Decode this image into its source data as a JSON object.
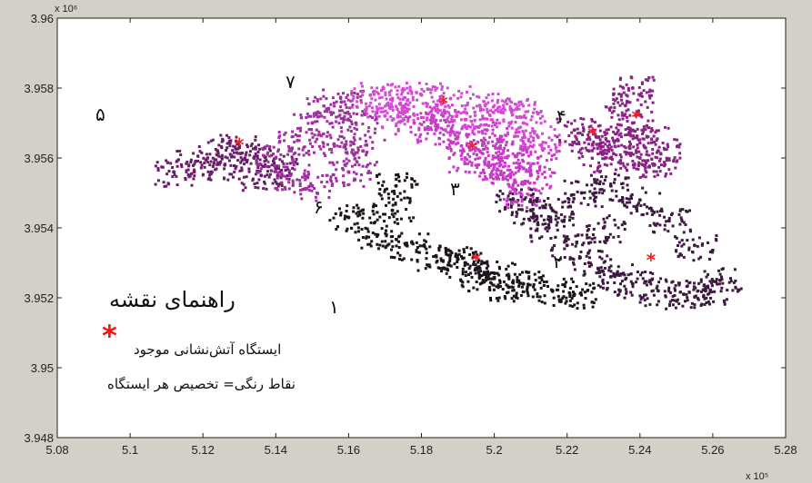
{
  "chart_data": {
    "type": "scatter",
    "x_exponent_label": "x 10⁵",
    "y_exponent_label": "x 10⁶",
    "xlim": [
      5.08,
      5.28
    ],
    "ylim": [
      3.948,
      3.96
    ],
    "x_ticks": [
      "5.08",
      "5.1",
      "5.12",
      "5.14",
      "5.16",
      "5.18",
      "5.2",
      "5.22",
      "5.24",
      "5.26",
      "5.28"
    ],
    "x_tick_values": [
      5.08,
      5.1,
      5.12,
      5.14,
      5.16,
      5.18,
      5.2,
      5.22,
      5.24,
      5.26,
      5.28
    ],
    "y_ticks": [
      "3.96",
      "3.958",
      "3.956",
      "3.954",
      "3.952",
      "3.95",
      "3.948"
    ],
    "y_tick_values": [
      3.96,
      3.958,
      3.956,
      3.954,
      3.952,
      3.95,
      3.948
    ],
    "stations": [
      {
        "x": 5.13,
        "y": 3.9564
      },
      {
        "x": 5.186,
        "y": 3.9576
      },
      {
        "x": 5.194,
        "y": 3.9563
      },
      {
        "x": 5.195,
        "y": 3.9531
      },
      {
        "x": 5.227,
        "y": 3.9567
      },
      {
        "x": 5.239,
        "y": 3.9572
      },
      {
        "x": 5.243,
        "y": 3.9531
      }
    ],
    "regions": [
      {
        "label": "۱",
        "color": "#1e141c",
        "points": [
          [
            5.16,
            3.9543
          ],
          [
            5.168,
            3.9538
          ],
          [
            5.176,
            3.9535
          ],
          [
            5.184,
            3.9532
          ],
          [
            5.192,
            3.953
          ],
          [
            5.2,
            3.9527
          ],
          [
            5.208,
            3.9524
          ],
          [
            5.216,
            3.9522
          ],
          [
            5.222,
            3.9521
          ],
          [
            5.172,
            3.9545
          ],
          [
            5.173,
            3.9552
          ],
          [
            5.19,
            3.9531
          ],
          [
            5.196,
            3.9526
          ],
          [
            5.204,
            3.9523
          ]
        ]
      },
      {
        "label": "۲",
        "color": "#3d1a3f",
        "points": [
          [
            5.205,
            3.9548
          ],
          [
            5.21,
            3.9545
          ],
          [
            5.215,
            3.954
          ],
          [
            5.22,
            3.9535
          ],
          [
            5.226,
            3.953
          ],
          [
            5.232,
            3.9526
          ],
          [
            5.238,
            3.9524
          ],
          [
            5.245,
            3.9522
          ],
          [
            5.252,
            3.9521
          ],
          [
            5.258,
            3.9522
          ],
          [
            5.262,
            3.9525
          ],
          [
            5.255,
            3.9535
          ],
          [
            5.248,
            3.9542
          ],
          [
            5.24,
            3.9548
          ],
          [
            5.232,
            3.9552
          ],
          [
            5.224,
            3.955
          ],
          [
            5.216,
            3.9545
          ],
          [
            5.23,
            3.954
          ]
        ]
      },
      {
        "label": "۳",
        "color": "#c83ac8",
        "points": [
          [
            5.178,
            3.957
          ],
          [
            5.184,
            3.9568
          ],
          [
            5.19,
            3.9566
          ],
          [
            5.196,
            3.9562
          ],
          [
            5.2,
            3.9558
          ],
          [
            5.204,
            3.9555
          ],
          [
            5.207,
            3.955
          ],
          [
            5.21,
            3.9555
          ],
          [
            5.212,
            3.956
          ],
          [
            5.205,
            3.9564
          ],
          [
            5.198,
            3.9568
          ],
          [
            5.186,
            3.9572
          ],
          [
            5.192,
            3.956
          ],
          [
            5.202,
            3.956
          ]
        ]
      },
      {
        "label": "۴",
        "color": "#8a2286",
        "points": [
          [
            5.222,
            3.9568
          ],
          [
            5.228,
            3.9566
          ],
          [
            5.234,
            3.9565
          ],
          [
            5.238,
            3.957
          ],
          [
            5.242,
            3.9566
          ],
          [
            5.245,
            3.9562
          ],
          [
            5.24,
            3.956
          ],
          [
            5.232,
            3.956
          ],
          [
            5.226,
            3.9562
          ],
          [
            5.238,
            3.958
          ],
          [
            5.236,
            3.9575
          ],
          [
            5.244,
            3.9558
          ]
        ]
      },
      {
        "label": "۵",
        "color": "#6a1e6a",
        "points": [
          [
            5.112,
            3.9556
          ],
          [
            5.118,
            3.9559
          ],
          [
            5.124,
            3.9562
          ],
          [
            5.13,
            3.9563
          ],
          [
            5.126,
            3.9558
          ],
          [
            5.134,
            3.956
          ],
          [
            5.136,
            3.9555
          ],
          [
            5.14,
            3.9557
          ]
        ]
      },
      {
        "label": "۶",
        "color": "#a030a0",
        "points": [
          [
            5.14,
            3.956
          ],
          [
            5.146,
            3.9565
          ],
          [
            5.15,
            3.957
          ],
          [
            5.154,
            3.9574
          ],
          [
            5.158,
            3.9576
          ],
          [
            5.162,
            3.957
          ],
          [
            5.164,
            3.9562
          ],
          [
            5.16,
            3.9556
          ],
          [
            5.15,
            3.9552
          ],
          [
            5.144,
            3.9555
          ],
          [
            5.156,
            3.9564
          ]
        ]
      },
      {
        "label": "۷",
        "color": "#d54ad5",
        "points": [
          [
            5.166,
            3.9578
          ],
          [
            5.172,
            3.9577
          ],
          [
            5.18,
            3.9578
          ],
          [
            5.188,
            3.9577
          ],
          [
            5.196,
            3.9575
          ],
          [
            5.202,
            3.9573
          ],
          [
            5.208,
            3.957
          ],
          [
            5.212,
            3.9566
          ],
          [
            5.206,
            3.9574
          ],
          [
            5.176,
            3.9574
          ],
          [
            5.17,
            3.9572
          ],
          [
            5.192,
            3.9571
          ]
        ]
      }
    ]
  },
  "legend": {
    "title": "راهنمای نقشه",
    "star_symbol": "*",
    "station_text": "ایستگاه آتش‌نشانی موجود",
    "color_text": "نقاط رنگی= تخصیص هر ایستگاه"
  }
}
